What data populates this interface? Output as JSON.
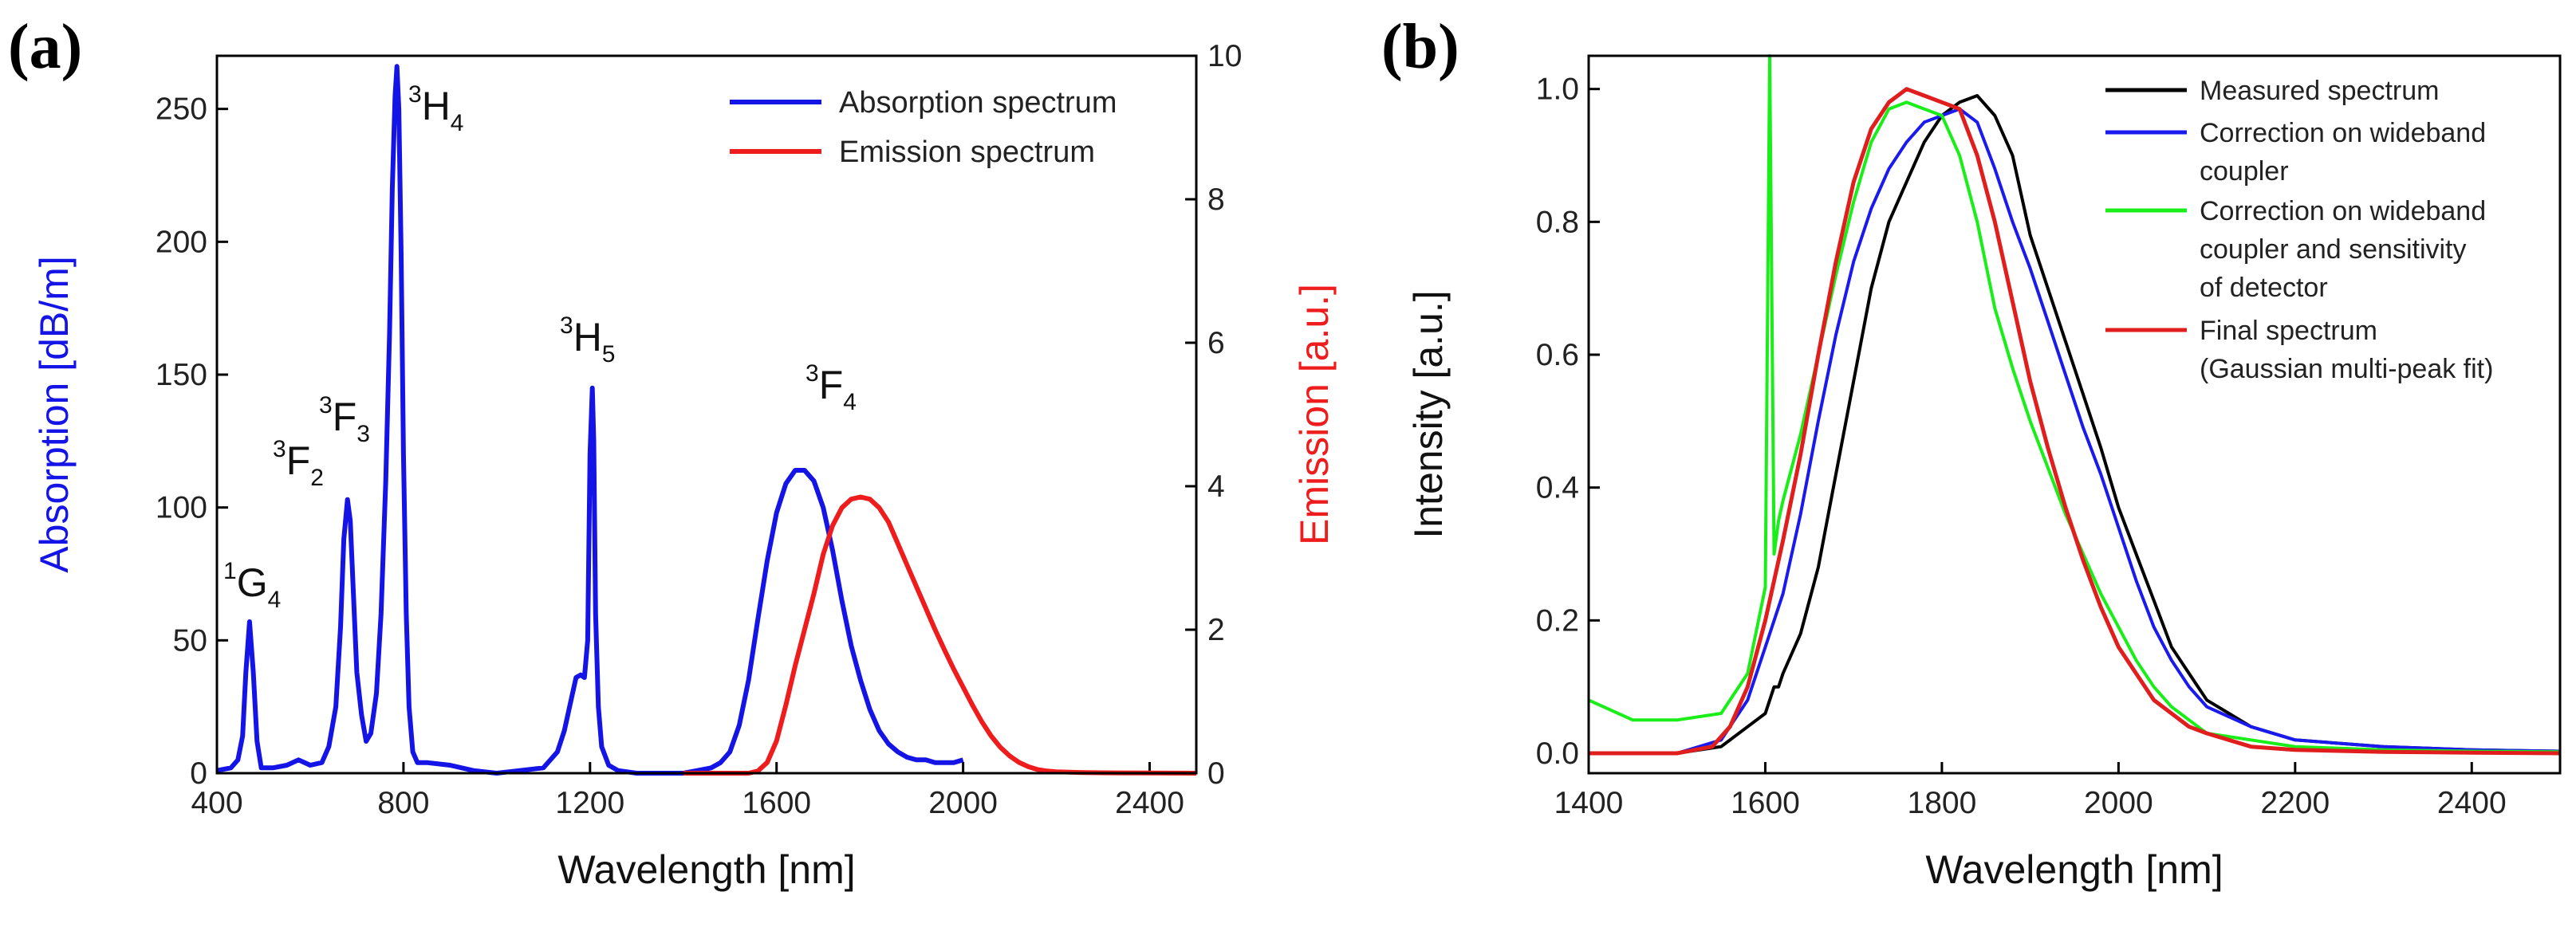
{
  "chart_data": [
    {
      "type": "line",
      "panel_label": "(a)",
      "xlabel": "Wavelength [nm]",
      "ylabel": "Absorption [dB/m]",
      "ylabel_right": "Emission [a.u.]",
      "xlim": [
        400,
        2500
      ],
      "ylim": [
        0,
        270
      ],
      "ylim_right": [
        0,
        10
      ],
      "x_ticks": [
        400,
        800,
        1200,
        1600,
        2000,
        2400
      ],
      "y_ticks": [
        0,
        50,
        100,
        150,
        200,
        250
      ],
      "y_ticks_right": [
        0,
        2,
        4,
        6,
        8,
        10
      ],
      "grid": false,
      "legend_position": "top-right",
      "series": [
        {
          "name": "Absorption spectrum",
          "axis": "left",
          "color": "#1414e6",
          "x": [
            400,
            430,
            445,
            455,
            462,
            470,
            478,
            486,
            495,
            520,
            550,
            575,
            600,
            625,
            640,
            655,
            665,
            672,
            680,
            686,
            692,
            700,
            710,
            720,
            730,
            742,
            752,
            762,
            770,
            776,
            782,
            786,
            790,
            795,
            800,
            806,
            812,
            820,
            830,
            850,
            900,
            950,
            1000,
            1100,
            1130,
            1145,
            1160,
            1170,
            1180,
            1188,
            1195,
            1200,
            1205,
            1208,
            1212,
            1218,
            1225,
            1240,
            1260,
            1300,
            1400,
            1430,
            1460,
            1480,
            1500,
            1520,
            1540,
            1560,
            1580,
            1600,
            1620,
            1640,
            1660,
            1680,
            1700,
            1720,
            1740,
            1760,
            1780,
            1800,
            1820,
            1840,
            1860,
            1880,
            1900,
            1920,
            1940,
            1960,
            1980,
            2000
          ],
          "y": [
            1,
            2,
            5,
            14,
            38,
            57,
            38,
            12,
            2,
            2,
            3,
            5,
            3,
            4,
            10,
            25,
            55,
            88,
            103,
            95,
            70,
            38,
            22,
            12,
            15,
            30,
            60,
            110,
            165,
            220,
            255,
            266,
            250,
            195,
            120,
            60,
            25,
            8,
            4,
            4,
            3,
            1,
            0,
            2,
            8,
            16,
            28,
            36,
            37,
            36,
            50,
            120,
            145,
            125,
            60,
            25,
            10,
            3,
            1,
            0,
            0,
            1,
            2,
            4,
            8,
            18,
            35,
            58,
            80,
            98,
            109,
            114,
            114,
            110,
            100,
            84,
            65,
            48,
            35,
            24,
            16,
            11,
            8,
            6,
            5,
            5,
            4,
            4,
            4,
            5
          ]
        },
        {
          "name": "Emission spectrum",
          "axis": "right",
          "color": "#ee1c1c",
          "x": [
            1400,
            1500,
            1540,
            1560,
            1580,
            1600,
            1620,
            1640,
            1660,
            1680,
            1700,
            1720,
            1740,
            1760,
            1780,
            1800,
            1820,
            1840,
            1860,
            1880,
            1900,
            1920,
            1940,
            1960,
            1980,
            2000,
            2020,
            2040,
            2060,
            2080,
            2100,
            2120,
            2140,
            2160,
            2180,
            2200,
            2250,
            2300,
            2400,
            2500
          ],
          "y": [
            0,
            0,
            0,
            0.03,
            0.15,
            0.45,
            0.95,
            1.5,
            2.0,
            2.5,
            3.05,
            3.45,
            3.7,
            3.82,
            3.85,
            3.82,
            3.7,
            3.5,
            3.2,
            2.9,
            2.6,
            2.3,
            2.0,
            1.72,
            1.45,
            1.2,
            0.95,
            0.72,
            0.52,
            0.36,
            0.24,
            0.15,
            0.09,
            0.05,
            0.03,
            0.02,
            0.01,
            0.005,
            0.002,
            0
          ]
        }
      ],
      "annotations": [
        {
          "sup": "1",
          "base": "G",
          "sub": "4"
        },
        {
          "sup": "3",
          "base": "F",
          "sub": "2"
        },
        {
          "sup": "3",
          "base": "F",
          "sub": "3"
        },
        {
          "sup": "3",
          "base": "H",
          "sub": "4"
        },
        {
          "sup": "3",
          "base": "H",
          "sub": "5"
        },
        {
          "sup": "3",
          "base": "F",
          "sub": "4"
        }
      ]
    },
    {
      "type": "line",
      "panel_label": "(b)",
      "xlabel": "Wavelength [nm]",
      "ylabel": "Intensity [a.u.]",
      "xlim": [
        1400,
        2500
      ],
      "ylim": [
        -0.03,
        1.05
      ],
      "x_ticks": [
        1400,
        1600,
        1800,
        2000,
        2200,
        2400
      ],
      "y_ticks": [
        0.0,
        0.2,
        0.4,
        0.6,
        0.8,
        1.0
      ],
      "grid": false,
      "legend_position": "top-right",
      "series": [
        {
          "name": "Measured spectrum",
          "color": "#000000",
          "x": [
            1400,
            1500,
            1550,
            1580,
            1600,
            1610,
            1615,
            1620,
            1640,
            1660,
            1680,
            1700,
            1720,
            1740,
            1760,
            1780,
            1800,
            1820,
            1840,
            1860,
            1880,
            1900,
            1920,
            1940,
            1960,
            1980,
            2000,
            2020,
            2040,
            2060,
            2080,
            2100,
            2150,
            2200,
            2300,
            2400,
            2500
          ],
          "y": [
            0.0,
            0.0,
            0.01,
            0.04,
            0.06,
            0.1,
            0.1,
            0.12,
            0.18,
            0.28,
            0.42,
            0.56,
            0.7,
            0.8,
            0.86,
            0.92,
            0.96,
            0.98,
            0.99,
            0.96,
            0.9,
            0.78,
            0.7,
            0.62,
            0.54,
            0.46,
            0.37,
            0.3,
            0.23,
            0.16,
            0.12,
            0.08,
            0.04,
            0.02,
            0.01,
            0.005,
            0.003
          ]
        },
        {
          "name": "Correction on wideband coupler",
          "color": "#1a1aee",
          "x": [
            1400,
            1500,
            1550,
            1580,
            1600,
            1620,
            1640,
            1660,
            1680,
            1700,
            1720,
            1740,
            1760,
            1780,
            1800,
            1820,
            1840,
            1860,
            1880,
            1900,
            1920,
            1940,
            1960,
            1980,
            2000,
            2020,
            2040,
            2060,
            2080,
            2100,
            2150,
            2200,
            2300,
            2400,
            2500
          ],
          "y": [
            0.0,
            0.0,
            0.02,
            0.08,
            0.16,
            0.24,
            0.36,
            0.5,
            0.63,
            0.74,
            0.82,
            0.88,
            0.92,
            0.95,
            0.96,
            0.97,
            0.95,
            0.88,
            0.8,
            0.73,
            0.65,
            0.57,
            0.49,
            0.42,
            0.34,
            0.26,
            0.19,
            0.14,
            0.1,
            0.07,
            0.04,
            0.02,
            0.01,
            0.005,
            0.003
          ]
        },
        {
          "name": "Correction on wideband coupler and sensitivity of detector",
          "color": "#19ee19",
          "x": [
            1400,
            1450,
            1500,
            1550,
            1580,
            1600,
            1605,
            1610,
            1615,
            1620,
            1640,
            1660,
            1680,
            1700,
            1720,
            1740,
            1760,
            1780,
            1800,
            1820,
            1840,
            1860,
            1880,
            1900,
            1920,
            1940,
            1960,
            1980,
            2000,
            2020,
            2040,
            2060,
            2080,
            2100,
            2150,
            2200,
            2300,
            2400,
            2500
          ],
          "y": [
            0.08,
            0.05,
            0.05,
            0.06,
            0.12,
            0.25,
            1.05,
            0.3,
            0.35,
            0.38,
            0.48,
            0.6,
            0.72,
            0.83,
            0.92,
            0.97,
            0.98,
            0.97,
            0.96,
            0.9,
            0.8,
            0.67,
            0.58,
            0.5,
            0.43,
            0.36,
            0.3,
            0.24,
            0.19,
            0.14,
            0.1,
            0.07,
            0.05,
            0.03,
            0.02,
            0.01,
            0.005,
            0.003,
            0.002
          ]
        },
        {
          "name": "Final spectrum (Gaussian multi-peak fit)",
          "color": "#e01e1e",
          "x": [
            1400,
            1500,
            1540,
            1560,
            1580,
            1600,
            1620,
            1640,
            1660,
            1680,
            1700,
            1720,
            1740,
            1760,
            1780,
            1800,
            1820,
            1840,
            1860,
            1880,
            1900,
            1920,
            1940,
            1960,
            1980,
            2000,
            2020,
            2040,
            2060,
            2080,
            2100,
            2150,
            2200,
            2300,
            2400,
            2500
          ],
          "y": [
            0.0,
            0.0,
            0.01,
            0.04,
            0.1,
            0.2,
            0.32,
            0.45,
            0.6,
            0.74,
            0.86,
            0.94,
            0.98,
            1.0,
            0.99,
            0.98,
            0.97,
            0.9,
            0.8,
            0.68,
            0.56,
            0.46,
            0.37,
            0.29,
            0.22,
            0.16,
            0.12,
            0.08,
            0.06,
            0.04,
            0.03,
            0.01,
            0.005,
            0.002,
            0.001,
            0.0
          ]
        }
      ]
    }
  ]
}
